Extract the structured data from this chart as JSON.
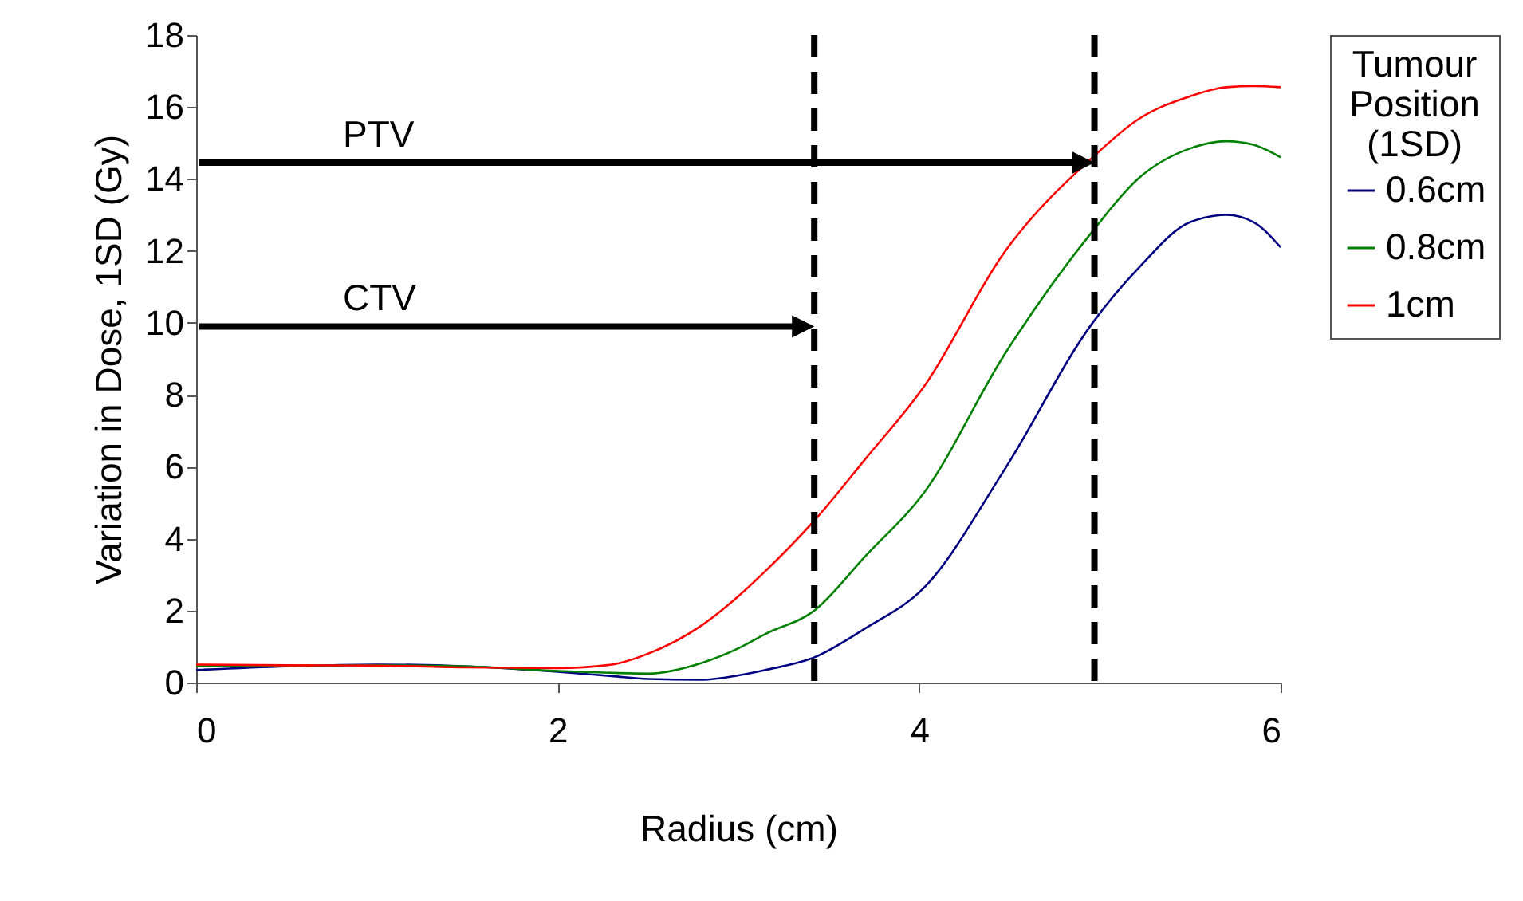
{
  "chart_data": {
    "type": "line",
    "xlabel": "Radius (cm)",
    "ylabel": "Variation in Dose, 1SD (Gy)",
    "legend_title": "Tumour Position (1SD)",
    "legend": "right",
    "grid": false,
    "marker": "none",
    "line_style": "solid",
    "xlim": [
      0,
      6
    ],
    "xticks": [
      0,
      2,
      4,
      6
    ],
    "ylim": [
      0,
      18
    ],
    "yticks": [
      0,
      2,
      4,
      6,
      8,
      10,
      12,
      14,
      16,
      18
    ],
    "x": [
      0,
      0.5,
      1,
      1.5,
      2,
      2.3,
      2.5,
      2.8,
      3.0,
      3.15,
      3.42,
      3.7,
      4.03,
      4.47,
      4.96,
      5.21,
      5.5,
      5.7,
      5.85,
      6
    ],
    "series": [
      {
        "name": "0.6cm",
        "color": "#000080",
        "values": [
          0.35,
          0.45,
          0.5,
          0.45,
          0.3,
          0.18,
          0.1,
          0.08,
          0.2,
          0.35,
          0.7,
          1.5,
          2.65,
          5.9,
          10.0,
          11.5,
          12.8,
          13.0,
          12.8,
          12.1
        ]
      },
      {
        "name": "0.8cm",
        "color": "#008000",
        "values": [
          0.45,
          0.47,
          0.48,
          0.45,
          0.32,
          0.27,
          0.25,
          0.55,
          0.95,
          1.35,
          2.0,
          3.5,
          5.3,
          9.1,
          12.55,
          14.0,
          14.85,
          15.05,
          14.95,
          14.6
        ]
      },
      {
        "name": "1cm",
        "color": "#ff0000",
        "values": [
          0.5,
          0.48,
          0.47,
          0.42,
          0.4,
          0.5,
          0.8,
          1.6,
          2.4,
          3.1,
          4.5,
          6.2,
          8.25,
          11.95,
          14.6,
          15.65,
          16.3,
          16.55,
          16.58,
          16.55
        ]
      }
    ],
    "ref_lines": [
      {
        "axis": "x",
        "value": 4.97,
        "color": "#000000",
        "line_style": "dashed"
      },
      {
        "axis": "x",
        "value": 3.42,
        "color": "#000000",
        "line_style": "dashed"
      }
    ],
    "annotations": [
      "PTV",
      "CTV"
    ]
  }
}
